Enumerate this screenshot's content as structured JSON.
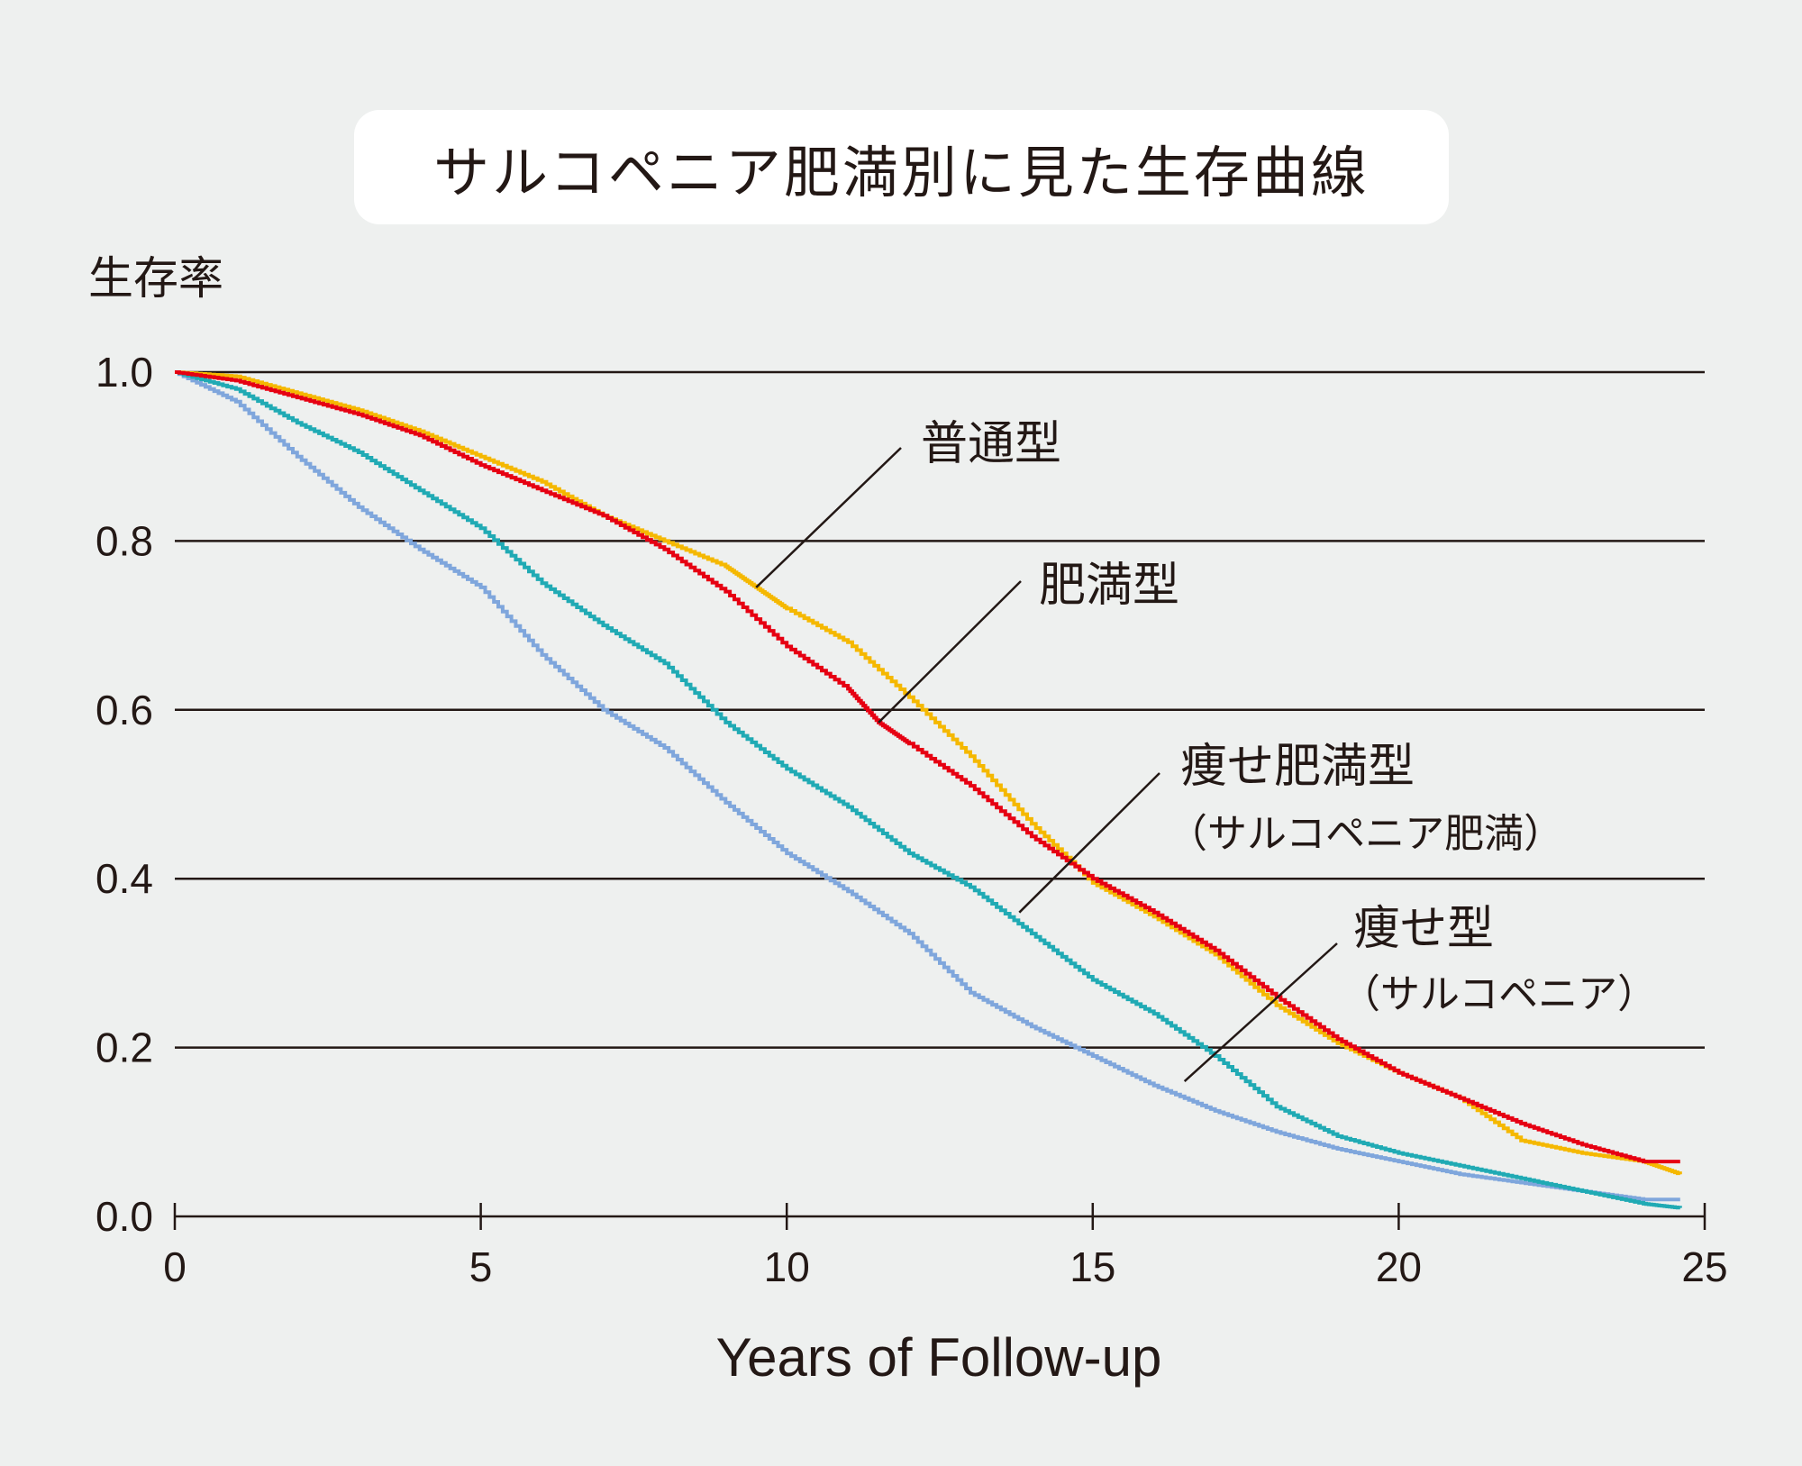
{
  "chart_data": {
    "type": "line",
    "title": "サルコペニア肥満別に見た生存曲線",
    "ylabel": "生存率",
    "xlabel": "Years of Follow-up",
    "xlim": [
      0,
      25
    ],
    "ylim": [
      0,
      1.0
    ],
    "x_ticks": [
      "0",
      "5",
      "10",
      "15",
      "20",
      "25"
    ],
    "y_ticks": [
      "0.0",
      "0.2",
      "0.4",
      "0.6",
      "0.8",
      "1.0"
    ],
    "grid": "horizontal",
    "colors": {
      "normal": "#f5b800",
      "obese": "#e60012",
      "sarcopenic_obese": "#20aab4",
      "sarcopenic": "#7fa6dc"
    },
    "series": [
      {
        "key": "normal",
        "x": [
          0,
          1,
          2,
          3,
          4,
          5,
          6,
          7,
          8,
          9,
          9.5,
          10,
          11,
          12,
          13,
          14,
          15,
          16,
          17,
          18,
          19,
          20,
          21,
          22,
          23,
          24,
          24.6
        ],
        "y": [
          1.0,
          0.995,
          0.975,
          0.955,
          0.93,
          0.9,
          0.87,
          0.83,
          0.8,
          0.77,
          0.745,
          0.72,
          0.68,
          0.615,
          0.545,
          0.465,
          0.395,
          0.355,
          0.31,
          0.25,
          0.205,
          0.17,
          0.14,
          0.09,
          0.075,
          0.065,
          0.05
        ]
      },
      {
        "key": "obese",
        "x": [
          0,
          1,
          2,
          3,
          4,
          5,
          6,
          7,
          8,
          9,
          10,
          11,
          11.5,
          12,
          13,
          14,
          15,
          16,
          17,
          18,
          19,
          20,
          21,
          22,
          23,
          24,
          24.6
        ],
        "y": [
          1.0,
          0.99,
          0.97,
          0.95,
          0.925,
          0.89,
          0.86,
          0.83,
          0.79,
          0.74,
          0.675,
          0.625,
          0.585,
          0.56,
          0.51,
          0.45,
          0.4,
          0.36,
          0.315,
          0.26,
          0.21,
          0.17,
          0.14,
          0.11,
          0.085,
          0.065,
          0.065
        ]
      },
      {
        "key": "sarcopenic_obese",
        "x": [
          0,
          1,
          2,
          3,
          4,
          5,
          6,
          7,
          8,
          9,
          10,
          11,
          12,
          13,
          14,
          15,
          16,
          17,
          18,
          19,
          20,
          21,
          22,
          23,
          24,
          24.6
        ],
        "y": [
          1.0,
          0.98,
          0.94,
          0.905,
          0.86,
          0.815,
          0.75,
          0.7,
          0.655,
          0.585,
          0.53,
          0.485,
          0.43,
          0.39,
          0.335,
          0.28,
          0.24,
          0.19,
          0.13,
          0.095,
          0.075,
          0.06,
          0.045,
          0.03,
          0.015,
          0.01
        ]
      },
      {
        "key": "sarcopenic",
        "x": [
          0,
          1,
          2,
          3,
          4,
          5,
          6,
          7,
          8,
          9,
          10,
          11,
          12,
          13,
          14,
          15,
          16,
          17,
          18,
          19,
          20,
          21,
          22,
          23,
          24,
          24.6
        ],
        "y": [
          1.0,
          0.965,
          0.9,
          0.84,
          0.79,
          0.745,
          0.665,
          0.6,
          0.555,
          0.49,
          0.43,
          0.385,
          0.335,
          0.265,
          0.225,
          0.19,
          0.155,
          0.125,
          0.1,
          0.08,
          0.065,
          0.05,
          0.04,
          0.03,
          0.02,
          0.02
        ]
      }
    ],
    "annotations": [
      {
        "key": "normal",
        "label": "普通型",
        "sublabel": "",
        "point": [
          9.5,
          0.745
        ]
      },
      {
        "key": "obese",
        "label": "肥満型",
        "sublabel": "",
        "point": [
          11.5,
          0.585
        ]
      },
      {
        "key": "sarcopenic_obese",
        "label": "痩せ肥満型",
        "sublabel": "（サルコペニア肥満）",
        "point": [
          13.8,
          0.36
        ]
      },
      {
        "key": "sarcopenic",
        "label": "痩せ型",
        "sublabel": "（サルコペニア）",
        "point": [
          16.5,
          0.16
        ]
      }
    ]
  }
}
